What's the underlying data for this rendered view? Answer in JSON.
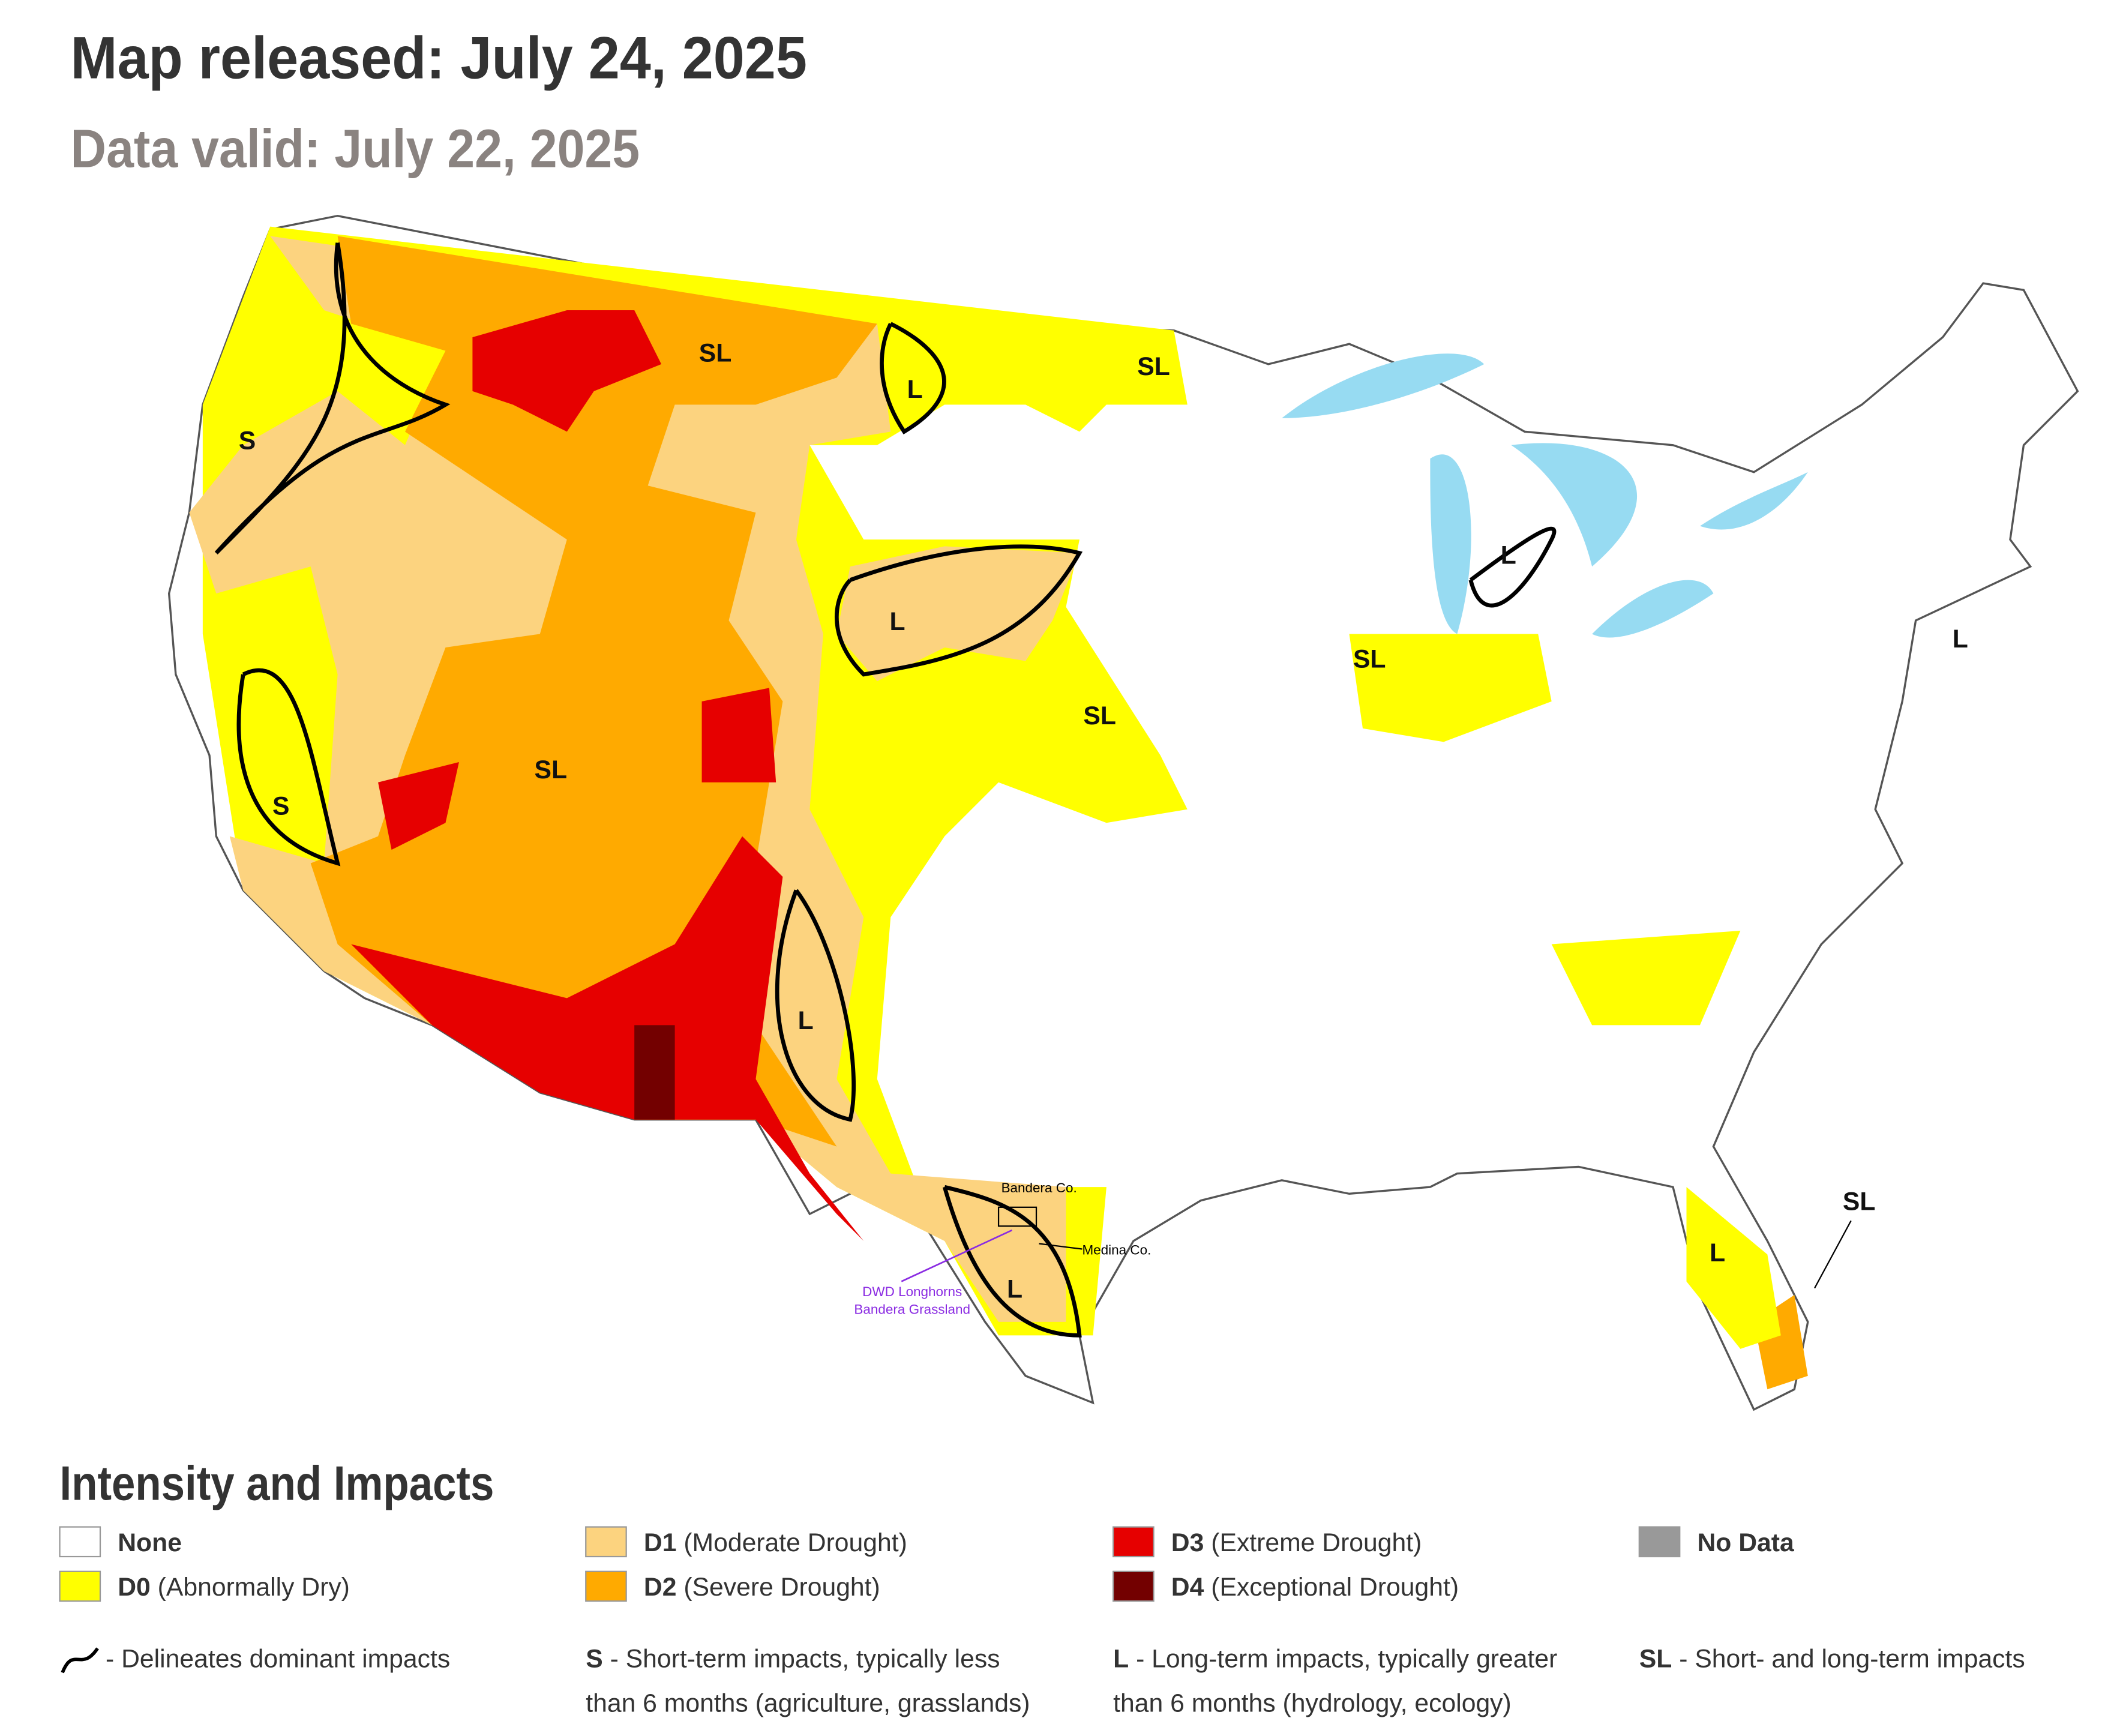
{
  "header": {
    "title": "Map released: July 24, 2025",
    "subtitle": "Data valid: July 22, 2025"
  },
  "map": {
    "impact_labels": [
      "SL",
      "L",
      "SL",
      "S",
      "L",
      "L",
      "SL",
      "SL",
      "SL",
      "S",
      "L",
      "L",
      "L",
      "L",
      "SL"
    ],
    "annotations": {
      "bandera": "Bandera Co.",
      "medina": "Medina Co.",
      "ranch_lines": [
        "DWD Longhorns",
        "Bandera Grassland"
      ]
    }
  },
  "legend": {
    "title": "Intensity and Impacts",
    "items": [
      {
        "code": "None",
        "color": "#ffffff"
      },
      {
        "code": "D0",
        "label": "(Abnormally Dry)",
        "color": "#ffff00"
      },
      {
        "code": "D1",
        "label": "(Moderate Drought)",
        "color": "#fcd37f"
      },
      {
        "code": "D2",
        "label": "(Severe Drought)",
        "color": "#ffaa00"
      },
      {
        "code": "D3",
        "label": "(Extreme Drought)",
        "color": "#e60000"
      },
      {
        "code": "D4",
        "label": "(Exceptional Drought)",
        "color": "#730000"
      },
      {
        "code": "No Data",
        "color": "#999999"
      }
    ],
    "impacts": [
      {
        "text_lines": [
          "- Delineates dominant impacts"
        ]
      },
      {
        "symbol": "S",
        "text_lines": [
          "- Short-term impacts, typically less",
          "than 6 months (agriculture, grasslands)"
        ]
      },
      {
        "symbol": "L",
        "text_lines": [
          "- Long-term impacts, typically greater",
          "than 6 months (hydrology, ecology)"
        ]
      },
      {
        "symbol": "SL",
        "text_lines": [
          "- Short- and long-term impacts"
        ]
      }
    ]
  }
}
